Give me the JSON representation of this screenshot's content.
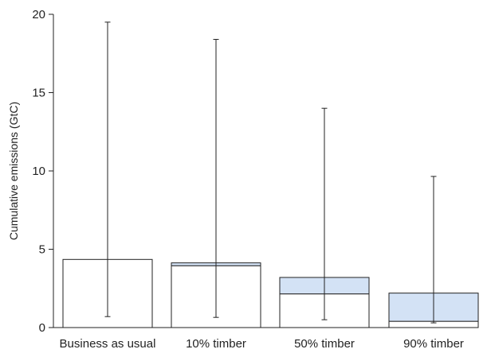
{
  "chart_data": {
    "type": "bar",
    "title": "",
    "xlabel": "",
    "ylabel": "Cumulative emissions (GtC)",
    "ylim": [
      0,
      20
    ],
    "yticks": [
      0,
      5,
      10,
      15,
      20
    ],
    "categories": [
      "Business as usual",
      "10% timber",
      "50% timber",
      "90% timber"
    ],
    "series": [
      {
        "values": [
          4.35,
          3.95,
          2.15,
          0.4
        ]
      },
      {
        "values": [
          0,
          0.18,
          1.05,
          1.8
        ]
      }
    ],
    "totals": [
      4.35,
      4.13,
      3.2,
      2.2
    ],
    "error_bars": [
      {
        "low": 0.7,
        "high": 19.5
      },
      {
        "low": 0.65,
        "high": 18.4
      },
      {
        "low": 0.5,
        "high": 14.0
      },
      {
        "low": 0.3,
        "high": 9.65
      }
    ],
    "grid": false,
    "legend": "none",
    "colors": {
      "base_fill": "#ffffff",
      "stacked_fill": "#d3e2f5",
      "stroke": "#222222"
    }
  }
}
